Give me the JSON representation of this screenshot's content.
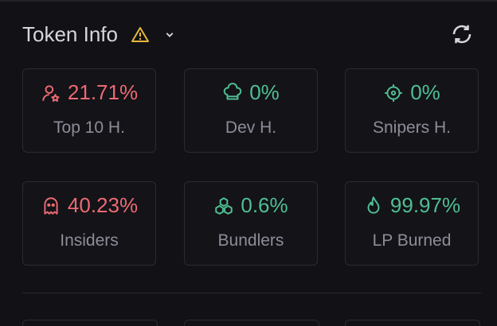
{
  "header": {
    "title": "Token Info"
  },
  "stats": [
    {
      "value": "21.71%",
      "label": "Top 10 H.",
      "tone": "red"
    },
    {
      "value": "0%",
      "label": "Dev H.",
      "tone": "green"
    },
    {
      "value": "0%",
      "label": "Snipers H.",
      "tone": "green"
    },
    {
      "value": "40.23%",
      "label": "Insiders",
      "tone": "red"
    },
    {
      "value": "0.6%",
      "label": "Bundlers",
      "tone": "green"
    },
    {
      "value": "99.97%",
      "label": "LP Burned",
      "tone": "green"
    }
  ]
}
